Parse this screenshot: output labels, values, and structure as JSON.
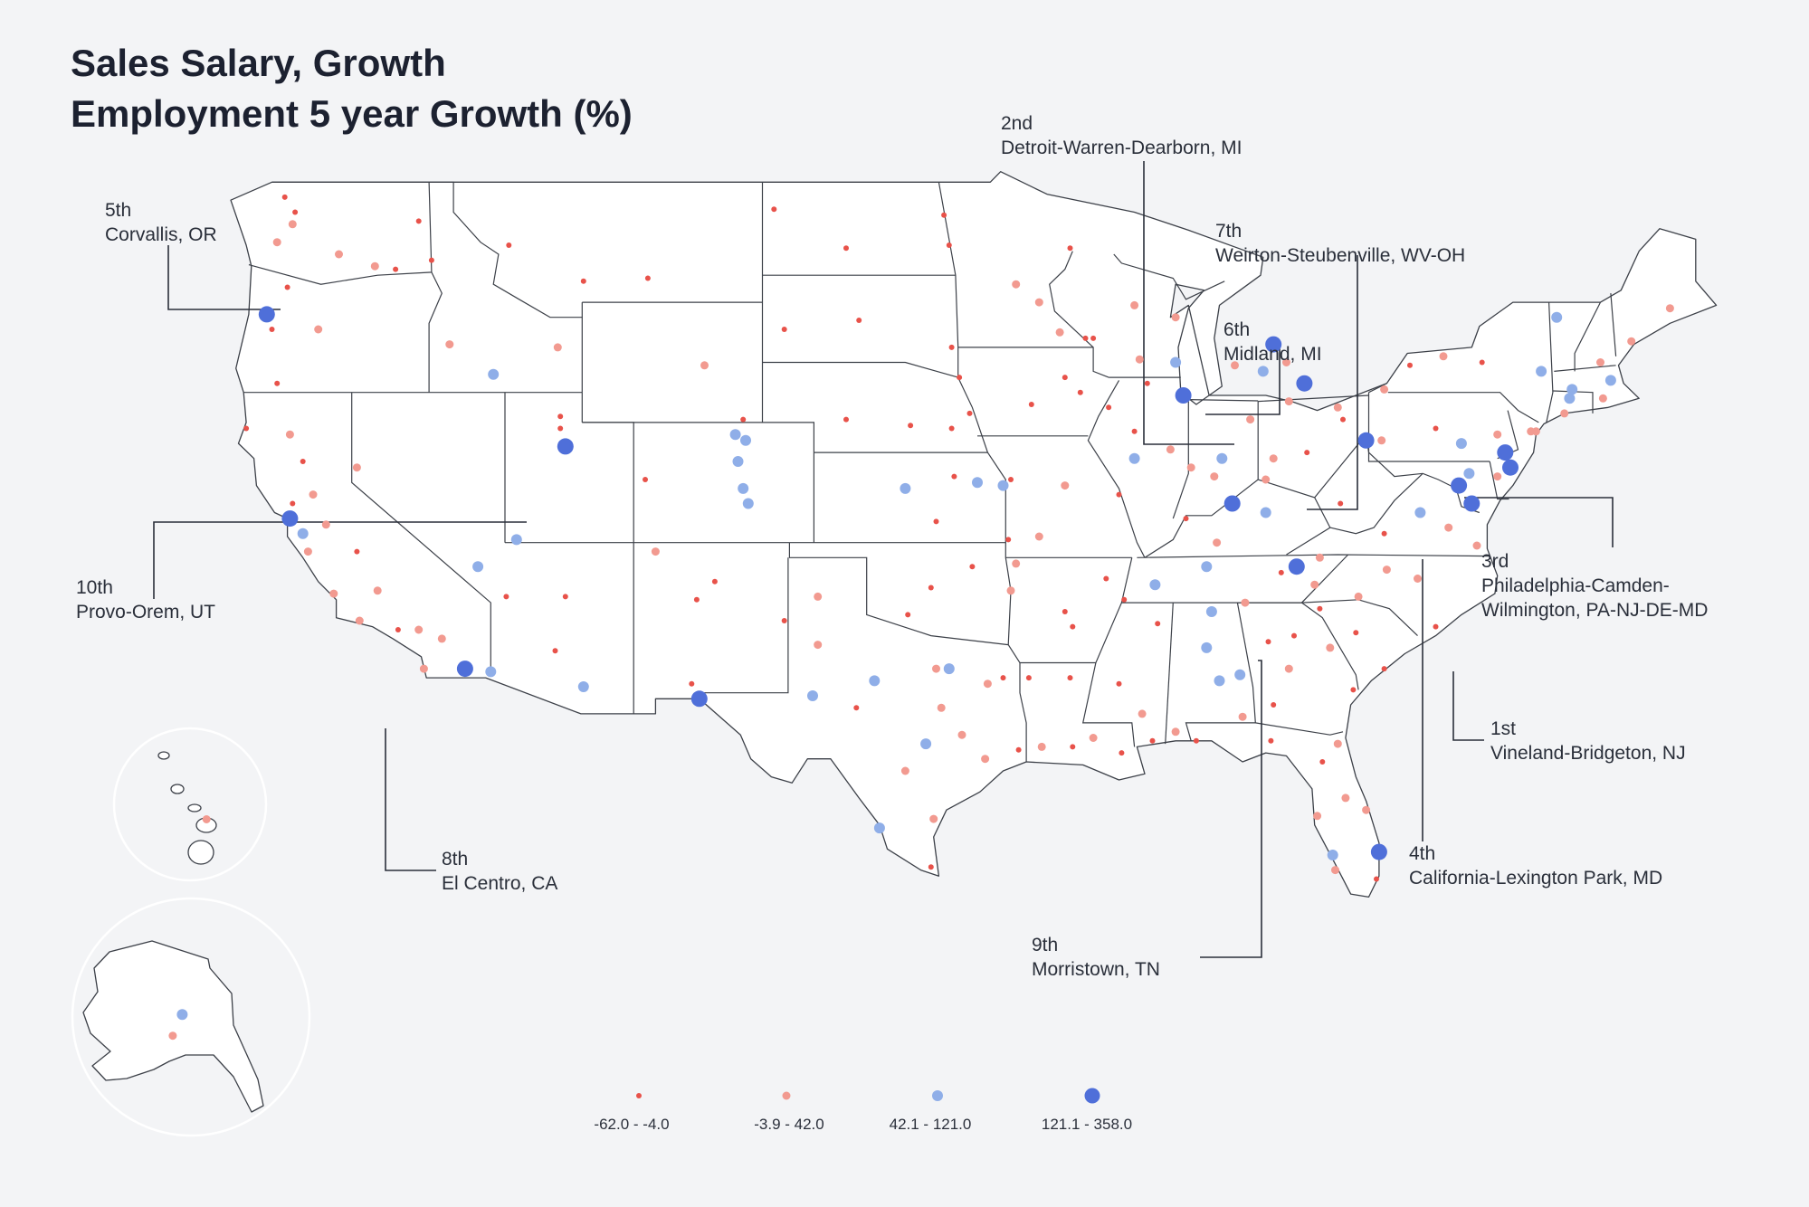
{
  "title": {
    "line1": "Sales Salary, Growth",
    "line2": "Employment 5 year Growth (%)"
  },
  "colors": {
    "bin1": "#e8524a",
    "bin2": "#f29a90",
    "bin3": "#8faee8",
    "bin4": "#4f6fd9",
    "background": "#f3f4f6",
    "state_fill": "#ffffff",
    "state_stroke": "#3c4048"
  },
  "legend": [
    {
      "label": "-62.0 - -4.0",
      "bin": 1
    },
    {
      "label": "-3.9 - 42.0",
      "bin": 2
    },
    {
      "label": "42.1 - 121.0",
      "bin": 3
    },
    {
      "label": "121.1 - 358.0",
      "bin": 4
    }
  ],
  "callouts": [
    {
      "rank": "1st",
      "name": "Vineland-Bridgeton, NJ"
    },
    {
      "rank": "2nd",
      "name": "Detroit-Warren-Dearborn, MI"
    },
    {
      "rank": "3rd",
      "name": "Philadelphia-Camden-",
      "name2": "Wilmington, PA-NJ-DE-MD"
    },
    {
      "rank": "4th",
      "name": "California-Lexington Park, MD"
    },
    {
      "rank": "5th",
      "name": "Corvallis, OR"
    },
    {
      "rank": "6th",
      "name": "Midland, MI"
    },
    {
      "rank": "7th",
      "name": "Weirton-Steubenville, WV-OH"
    },
    {
      "rank": "8th",
      "name": "El Centro, CA"
    },
    {
      "rank": "9th",
      "name": "Morristown, TN"
    },
    {
      "rank": "10th",
      "name": "Provo-Orem, UT"
    }
  ],
  "map_data": {
    "type": "proportional symbol map",
    "region": "United States",
    "metric": "Employment 5 year Growth (%)",
    "bins": [
      "-62.0 - -4.0",
      "-3.9 - 42.0",
      "42.1 - 121.0",
      "121.1 - 358.0"
    ],
    "insets": [
      "Alaska",
      "Hawaii"
    ],
    "points": [
      {
        "lon": -122.9,
        "lat": 47.0,
        "bin": 2
      },
      {
        "lon": -122.3,
        "lat": 47.6,
        "bin": 2
      },
      {
        "lon": -122.6,
        "lat": 48.5,
        "bin": 1
      },
      {
        "lon": -122.2,
        "lat": 48.0,
        "bin": 1
      },
      {
        "lon": -117.4,
        "lat": 47.7,
        "bin": 1
      },
      {
        "lon": -120.5,
        "lat": 46.6,
        "bin": 2
      },
      {
        "lon": -119.1,
        "lat": 46.2,
        "bin": 2
      },
      {
        "lon": -118.3,
        "lat": 46.1,
        "bin": 1
      },
      {
        "lon": -122.5,
        "lat": 45.5,
        "bin": 1
      },
      {
        "lon": -123.3,
        "lat": 44.6,
        "bin": 4
      },
      {
        "lon": -123.1,
        "lat": 44.1,
        "bin": 1
      },
      {
        "lon": -121.3,
        "lat": 44.1,
        "bin": 2
      },
      {
        "lon": -122.9,
        "lat": 42.3,
        "bin": 1
      },
      {
        "lon": -124.1,
        "lat": 40.8,
        "bin": 1
      },
      {
        "lon": -122.4,
        "lat": 40.6,
        "bin": 2
      },
      {
        "lon": -121.9,
        "lat": 39.7,
        "bin": 1
      },
      {
        "lon": -121.5,
        "lat": 38.6,
        "bin": 2
      },
      {
        "lon": -122.3,
        "lat": 38.3,
        "bin": 1
      },
      {
        "lon": -122.4,
        "lat": 37.8,
        "bin": 4
      },
      {
        "lon": -121.9,
        "lat": 37.3,
        "bin": 3
      },
      {
        "lon": -121.0,
        "lat": 37.6,
        "bin": 2
      },
      {
        "lon": -119.8,
        "lat": 36.7,
        "bin": 1
      },
      {
        "lon": -119.0,
        "lat": 35.4,
        "bin": 2
      },
      {
        "lon": -121.7,
        "lat": 36.7,
        "bin": 2
      },
      {
        "lon": -120.7,
        "lat": 35.3,
        "bin": 2
      },
      {
        "lon": -119.7,
        "lat": 34.4,
        "bin": 2
      },
      {
        "lon": -118.2,
        "lat": 34.1,
        "bin": 1
      },
      {
        "lon": -117.4,
        "lat": 34.1,
        "bin": 2
      },
      {
        "lon": -117.2,
        "lat": 32.8,
        "bin": 2
      },
      {
        "lon": -115.6,
        "lat": 32.8,
        "bin": 4
      },
      {
        "lon": -116.5,
        "lat": 33.8,
        "bin": 2
      },
      {
        "lon": -119.8,
        "lat": 39.5,
        "bin": 2
      },
      {
        "lon": -115.1,
        "lat": 36.2,
        "bin": 3
      },
      {
        "lon": -116.2,
        "lat": 43.6,
        "bin": 2
      },
      {
        "lon": -112.0,
        "lat": 43.5,
        "bin": 2
      },
      {
        "lon": -114.5,
        "lat": 42.6,
        "bin": 3
      },
      {
        "lon": -116.9,
        "lat": 46.4,
        "bin": 1
      },
      {
        "lon": -113.9,
        "lat": 46.9,
        "bin": 1
      },
      {
        "lon": -111.0,
        "lat": 45.7,
        "bin": 1
      },
      {
        "lon": -108.5,
        "lat": 45.8,
        "bin": 1
      },
      {
        "lon": -111.9,
        "lat": 41.2,
        "bin": 1
      },
      {
        "lon": -111.9,
        "lat": 40.8,
        "bin": 1
      },
      {
        "lon": -111.7,
        "lat": 40.2,
        "bin": 4
      },
      {
        "lon": -113.6,
        "lat": 37.1,
        "bin": 3
      },
      {
        "lon": -104.8,
        "lat": 41.1,
        "bin": 1
      },
      {
        "lon": -106.3,
        "lat": 42.9,
        "bin": 2
      },
      {
        "lon": -105.1,
        "lat": 40.6,
        "bin": 3
      },
      {
        "lon": -104.7,
        "lat": 40.4,
        "bin": 3
      },
      {
        "lon": -105.0,
        "lat": 39.7,
        "bin": 3
      },
      {
        "lon": -104.8,
        "lat": 38.8,
        "bin": 3
      },
      {
        "lon": -104.6,
        "lat": 38.3,
        "bin": 3
      },
      {
        "lon": -108.6,
        "lat": 39.1,
        "bin": 1
      },
      {
        "lon": -111.7,
        "lat": 35.2,
        "bin": 1
      },
      {
        "lon": -112.1,
        "lat": 33.4,
        "bin": 1
      },
      {
        "lon": -111.0,
        "lat": 32.2,
        "bin": 3
      },
      {
        "lon": -114.6,
        "lat": 32.7,
        "bin": 3
      },
      {
        "lon": -114.0,
        "lat": 35.2,
        "bin": 1
      },
      {
        "lon": -106.6,
        "lat": 35.1,
        "bin": 1
      },
      {
        "lon": -105.9,
        "lat": 35.7,
        "bin": 1
      },
      {
        "lon": -106.8,
        "lat": 32.3,
        "bin": 1
      },
      {
        "lon": -108.2,
        "lat": 36.7,
        "bin": 2
      },
      {
        "lon": -106.5,
        "lat": 31.8,
        "bin": 4
      },
      {
        "lon": -103.2,
        "lat": 34.4,
        "bin": 1
      },
      {
        "lon": -101.9,
        "lat": 35.2,
        "bin": 2
      },
      {
        "lon": -101.9,
        "lat": 33.6,
        "bin": 2
      },
      {
        "lon": -102.1,
        "lat": 31.9,
        "bin": 3
      },
      {
        "lon": -100.4,
        "lat": 31.5,
        "bin": 1
      },
      {
        "lon": -99.7,
        "lat": 32.4,
        "bin": 3
      },
      {
        "lon": -97.3,
        "lat": 32.8,
        "bin": 2
      },
      {
        "lon": -96.8,
        "lat": 32.8,
        "bin": 3
      },
      {
        "lon": -97.1,
        "lat": 31.5,
        "bin": 2
      },
      {
        "lon": -97.7,
        "lat": 30.3,
        "bin": 3
      },
      {
        "lon": -98.5,
        "lat": 29.4,
        "bin": 2
      },
      {
        "lon": -95.4,
        "lat": 29.8,
        "bin": 2
      },
      {
        "lon": -94.1,
        "lat": 30.1,
        "bin": 1
      },
      {
        "lon": -97.4,
        "lat": 27.8,
        "bin": 2
      },
      {
        "lon": -97.5,
        "lat": 26.2,
        "bin": 1
      },
      {
        "lon": -99.5,
        "lat": 27.5,
        "bin": 3
      },
      {
        "lon": -95.3,
        "lat": 32.3,
        "bin": 2
      },
      {
        "lon": -94.7,
        "lat": 32.5,
        "bin": 1
      },
      {
        "lon": -96.3,
        "lat": 30.6,
        "bin": 2
      },
      {
        "lon": -97.5,
        "lat": 35.5,
        "bin": 1
      },
      {
        "lon": -95.9,
        "lat": 36.2,
        "bin": 1
      },
      {
        "lon": -98.4,
        "lat": 34.6,
        "bin": 1
      },
      {
        "lon": -97.3,
        "lat": 37.7,
        "bin": 1
      },
      {
        "lon": -95.7,
        "lat": 39.0,
        "bin": 3
      },
      {
        "lon": -94.7,
        "lat": 38.9,
        "bin": 3
      },
      {
        "lon": -98.5,
        "lat": 38.8,
        "bin": 3
      },
      {
        "lon": -96.6,
        "lat": 39.2,
        "bin": 1
      },
      {
        "lon": -96.0,
        "lat": 41.3,
        "bin": 1
      },
      {
        "lon": -96.7,
        "lat": 40.8,
        "bin": 1
      },
      {
        "lon": -100.8,
        "lat": 41.1,
        "bin": 1
      },
      {
        "lon": -98.3,
        "lat": 40.9,
        "bin": 1
      },
      {
        "lon": -96.7,
        "lat": 43.5,
        "bin": 1
      },
      {
        "lon": -103.2,
        "lat": 44.1,
        "bin": 1
      },
      {
        "lon": -100.3,
        "lat": 44.4,
        "bin": 1
      },
      {
        "lon": -96.8,
        "lat": 46.9,
        "bin": 1
      },
      {
        "lon": -100.8,
        "lat": 46.8,
        "bin": 1
      },
      {
        "lon": -103.6,
        "lat": 48.1,
        "bin": 1
      },
      {
        "lon": -97.0,
        "lat": 47.9,
        "bin": 1
      },
      {
        "lon": -92.1,
        "lat": 46.8,
        "bin": 1
      },
      {
        "lon": -93.3,
        "lat": 45.0,
        "bin": 2
      },
      {
        "lon": -94.2,
        "lat": 45.6,
        "bin": 2
      },
      {
        "lon": -92.5,
        "lat": 44.0,
        "bin": 2
      },
      {
        "lon": -91.5,
        "lat": 43.8,
        "bin": 1
      },
      {
        "lon": -96.4,
        "lat": 42.5,
        "bin": 1
      },
      {
        "lon": -93.6,
        "lat": 41.6,
        "bin": 1
      },
      {
        "lon": -91.7,
        "lat": 42.0,
        "bin": 1
      },
      {
        "lon": -90.6,
        "lat": 41.5,
        "bin": 1
      },
      {
        "lon": -92.3,
        "lat": 42.5,
        "bin": 1
      },
      {
        "lon": -94.4,
        "lat": 39.1,
        "bin": 1
      },
      {
        "lon": -92.3,
        "lat": 38.9,
        "bin": 2
      },
      {
        "lon": -90.2,
        "lat": 38.6,
        "bin": 1
      },
      {
        "lon": -93.3,
        "lat": 37.2,
        "bin": 2
      },
      {
        "lon": -94.5,
        "lat": 37.1,
        "bin": 1
      },
      {
        "lon": -94.2,
        "lat": 36.3,
        "bin": 2
      },
      {
        "lon": -92.3,
        "lat": 34.7,
        "bin": 1
      },
      {
        "lon": -94.4,
        "lat": 35.4,
        "bin": 2
      },
      {
        "lon": -90.7,
        "lat": 35.8,
        "bin": 1
      },
      {
        "lon": -92.0,
        "lat": 34.2,
        "bin": 1
      },
      {
        "lon": -93.7,
        "lat": 32.5,
        "bin": 1
      },
      {
        "lon": -92.1,
        "lat": 32.5,
        "bin": 1
      },
      {
        "lon": -91.2,
        "lat": 30.5,
        "bin": 2
      },
      {
        "lon": -90.1,
        "lat": 30.0,
        "bin": 1
      },
      {
        "lon": -92.0,
        "lat": 30.2,
        "bin": 1
      },
      {
        "lon": -93.2,
        "lat": 30.2,
        "bin": 2
      },
      {
        "lon": -90.2,
        "lat": 32.3,
        "bin": 1
      },
      {
        "lon": -88.7,
        "lat": 34.3,
        "bin": 1
      },
      {
        "lon": -89.3,
        "lat": 31.3,
        "bin": 2
      },
      {
        "lon": -88.9,
        "lat": 30.4,
        "bin": 1
      },
      {
        "lon": -88.0,
        "lat": 30.7,
        "bin": 2
      },
      {
        "lon": -86.8,
        "lat": 33.5,
        "bin": 3
      },
      {
        "lon": -86.6,
        "lat": 34.7,
        "bin": 3
      },
      {
        "lon": -86.3,
        "lat": 32.4,
        "bin": 3
      },
      {
        "lon": -85.5,
        "lat": 32.6,
        "bin": 3
      },
      {
        "lon": -85.4,
        "lat": 31.2,
        "bin": 2
      },
      {
        "lon": -87.2,
        "lat": 30.4,
        "bin": 1
      },
      {
        "lon": -84.4,
        "lat": 33.7,
        "bin": 1
      },
      {
        "lon": -83.4,
        "lat": 33.9,
        "bin": 1
      },
      {
        "lon": -84.2,
        "lat": 31.6,
        "bin": 1
      },
      {
        "lon": -81.1,
        "lat": 32.1,
        "bin": 1
      },
      {
        "lon": -83.6,
        "lat": 32.8,
        "bin": 2
      },
      {
        "lon": -82.0,
        "lat": 33.5,
        "bin": 2
      },
      {
        "lon": -81.0,
        "lat": 34.0,
        "bin": 1
      },
      {
        "lon": -79.9,
        "lat": 32.8,
        "bin": 1
      },
      {
        "lon": -82.4,
        "lat": 34.8,
        "bin": 1
      },
      {
        "lon": -81.7,
        "lat": 30.3,
        "bin": 2
      },
      {
        "lon": -82.3,
        "lat": 29.7,
        "bin": 1
      },
      {
        "lon": -84.3,
        "lat": 30.4,
        "bin": 1
      },
      {
        "lon": -81.4,
        "lat": 28.5,
        "bin": 2
      },
      {
        "lon": -82.5,
        "lat": 27.9,
        "bin": 2
      },
      {
        "lon": -81.9,
        "lat": 26.6,
        "bin": 3
      },
      {
        "lon": -80.1,
        "lat": 26.7,
        "bin": 4
      },
      {
        "lon": -80.2,
        "lat": 25.8,
        "bin": 1
      },
      {
        "lon": -80.6,
        "lat": 28.1,
        "bin": 2
      },
      {
        "lon": -81.8,
        "lat": 26.1,
        "bin": 2
      },
      {
        "lon": -86.8,
        "lat": 36.2,
        "bin": 3
      },
      {
        "lon": -85.3,
        "lat": 35.0,
        "bin": 2
      },
      {
        "lon": -83.3,
        "lat": 36.2,
        "bin": 4
      },
      {
        "lon": -83.9,
        "lat": 36.0,
        "bin": 1
      },
      {
        "lon": -90.0,
        "lat": 35.1,
        "bin": 1
      },
      {
        "lon": -88.8,
        "lat": 35.6,
        "bin": 3
      },
      {
        "lon": -82.4,
        "lat": 36.5,
        "bin": 2
      },
      {
        "lon": -85.8,
        "lat": 38.3,
        "bin": 4
      },
      {
        "lon": -84.5,
        "lat": 38.0,
        "bin": 3
      },
      {
        "lon": -86.4,
        "lat": 37.0,
        "bin": 2
      },
      {
        "lon": -87.6,
        "lat": 37.8,
        "bin": 1
      },
      {
        "lon": -86.2,
        "lat": 39.8,
        "bin": 3
      },
      {
        "lon": -85.1,
        "lat": 41.1,
        "bin": 2
      },
      {
        "lon": -87.4,
        "lat": 39.5,
        "bin": 2
      },
      {
        "lon": -86.5,
        "lat": 39.2,
        "bin": 2
      },
      {
        "lon": -87.7,
        "lat": 41.9,
        "bin": 4
      },
      {
        "lon": -89.6,
        "lat": 39.8,
        "bin": 3
      },
      {
        "lon": -88.2,
        "lat": 40.1,
        "bin": 2
      },
      {
        "lon": -89.6,
        "lat": 40.7,
        "bin": 1
      },
      {
        "lon": -89.1,
        "lat": 42.3,
        "bin": 1
      },
      {
        "lon": -88.0,
        "lat": 43.0,
        "bin": 3
      },
      {
        "lon": -89.4,
        "lat": 43.1,
        "bin": 2
      },
      {
        "lon": -88.0,
        "lat": 44.5,
        "bin": 2
      },
      {
        "lon": -91.2,
        "lat": 43.8,
        "bin": 1
      },
      {
        "lon": -89.6,
        "lat": 44.9,
        "bin": 2
      },
      {
        "lon": -83.0,
        "lat": 42.3,
        "bin": 4
      },
      {
        "lon": -84.2,
        "lat": 43.6,
        "bin": 4
      },
      {
        "lon": -85.7,
        "lat": 42.9,
        "bin": 2
      },
      {
        "lon": -84.6,
        "lat": 42.7,
        "bin": 3
      },
      {
        "lon": -83.7,
        "lat": 43.0,
        "bin": 2
      },
      {
        "lon": -83.6,
        "lat": 41.7,
        "bin": 2
      },
      {
        "lon": -81.7,
        "lat": 41.5,
        "bin": 2
      },
      {
        "lon": -82.9,
        "lat": 40.0,
        "bin": 1
      },
      {
        "lon": -84.2,
        "lat": 39.8,
        "bin": 2
      },
      {
        "lon": -84.5,
        "lat": 39.1,
        "bin": 2
      },
      {
        "lon": -81.5,
        "lat": 41.1,
        "bin": 1
      },
      {
        "lon": -80.6,
        "lat": 40.4,
        "bin": 4
      },
      {
        "lon": -80.0,
        "lat": 40.4,
        "bin": 2
      },
      {
        "lon": -77.0,
        "lat": 38.9,
        "bin": 4
      },
      {
        "lon": -76.6,
        "lat": 39.3,
        "bin": 3
      },
      {
        "lon": -76.5,
        "lat": 38.3,
        "bin": 4
      },
      {
        "lon": -77.4,
        "lat": 37.5,
        "bin": 2
      },
      {
        "lon": -76.3,
        "lat": 36.9,
        "bin": 2
      },
      {
        "lon": -79.9,
        "lat": 37.3,
        "bin": 1
      },
      {
        "lon": -78.5,
        "lat": 38.0,
        "bin": 3
      },
      {
        "lon": -81.6,
        "lat": 38.3,
        "bin": 1
      },
      {
        "lon": -80.9,
        "lat": 35.2,
        "bin": 2
      },
      {
        "lon": -78.6,
        "lat": 35.8,
        "bin": 2
      },
      {
        "lon": -79.8,
        "lat": 36.1,
        "bin": 2
      },
      {
        "lon": -77.9,
        "lat": 34.2,
        "bin": 1
      },
      {
        "lon": -82.6,
        "lat": 35.6,
        "bin": 2
      },
      {
        "lon": -75.2,
        "lat": 40.0,
        "bin": 4
      },
      {
        "lon": -75.0,
        "lat": 39.5,
        "bin": 4
      },
      {
        "lon": -74.2,
        "lat": 40.7,
        "bin": 2
      },
      {
        "lon": -76.9,
        "lat": 40.3,
        "bin": 3
      },
      {
        "lon": -75.5,
        "lat": 40.6,
        "bin": 2
      },
      {
        "lon": -77.9,
        "lat": 40.8,
        "bin": 1
      },
      {
        "lon": -79.9,
        "lat": 42.1,
        "bin": 2
      },
      {
        "lon": -78.9,
        "lat": 42.9,
        "bin": 1
      },
      {
        "lon": -77.6,
        "lat": 43.2,
        "bin": 2
      },
      {
        "lon": -76.1,
        "lat": 43.0,
        "bin": 1
      },
      {
        "lon": -73.8,
        "lat": 42.7,
        "bin": 3
      },
      {
        "lon": -74.0,
        "lat": 40.7,
        "bin": 2
      },
      {
        "lon": -72.9,
        "lat": 41.3,
        "bin": 2
      },
      {
        "lon": -72.7,
        "lat": 41.8,
        "bin": 3
      },
      {
        "lon": -71.4,
        "lat": 41.8,
        "bin": 2
      },
      {
        "lon": -71.1,
        "lat": 42.4,
        "bin": 3
      },
      {
        "lon": -72.6,
        "lat": 42.1,
        "bin": 3
      },
      {
        "lon": -71.5,
        "lat": 43.0,
        "bin": 2
      },
      {
        "lon": -73.2,
        "lat": 44.5,
        "bin": 3
      },
      {
        "lon": -70.3,
        "lat": 43.7,
        "bin": 2
      },
      {
        "lon": -68.8,
        "lat": 44.8,
        "bin": 2
      },
      {
        "lon": -75.5,
        "lat": 39.2,
        "bin": 2
      }
    ],
    "alaska_points": [
      {
        "lon": -149.9,
        "lat": 61.2,
        "bin": 2
      },
      {
        "lon": -147.7,
        "lat": 64.8,
        "bin": 3
      }
    ],
    "hawaii_points": [
      {
        "lon": -157.9,
        "lat": 21.3,
        "bin": 2
      }
    ]
  }
}
